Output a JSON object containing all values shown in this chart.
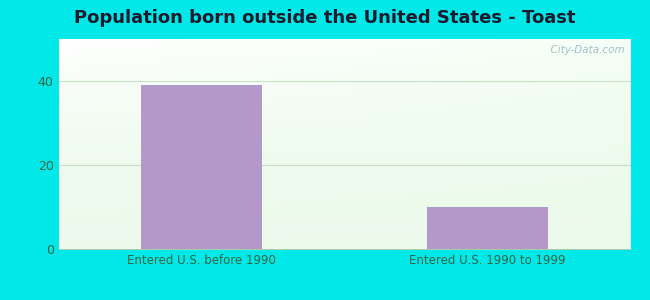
{
  "title": "Population born outside the United States - Toast",
  "categories": [
    "Entered U.S. before 1990",
    "Entered U.S. 1990 to 1999"
  ],
  "values": [
    39,
    10
  ],
  "bar_color": "#b399c8",
  "outer_bg": "#00e8e8",
  "grid_color": "#d0e8d0",
  "tick_color": "#336644",
  "title_fontsize": 13,
  "label_fontsize": 8.5,
  "yticks": [
    0,
    20,
    40
  ],
  "ylim": [
    0,
    50
  ],
  "watermark": "  City-Data.com"
}
